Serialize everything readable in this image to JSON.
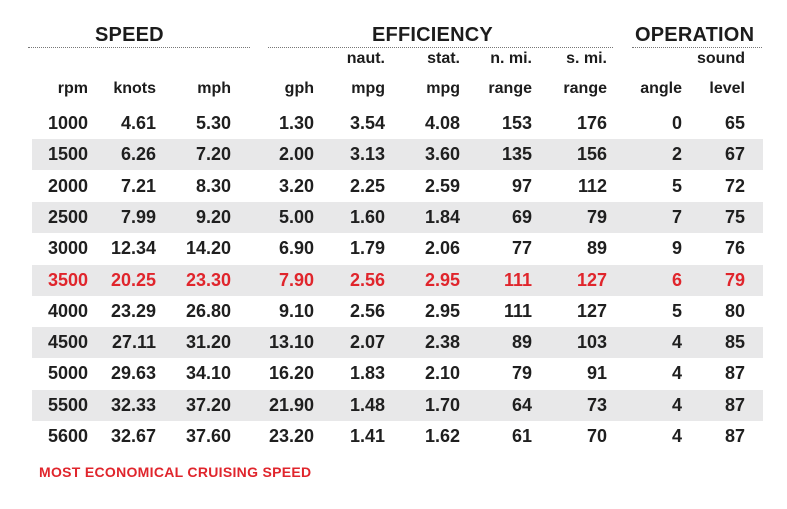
{
  "groups": {
    "speed": "SPEED",
    "efficiency": "EFFICIENCY",
    "operation": "OPERATION"
  },
  "columns": [
    {
      "top": "",
      "bottom": "rpm"
    },
    {
      "top": "",
      "bottom": "knots"
    },
    {
      "top": "",
      "bottom": "mph"
    },
    {
      "top": "",
      "bottom": "gph"
    },
    {
      "top": "naut.",
      "bottom": "mpg"
    },
    {
      "top": "stat.",
      "bottom": "mpg"
    },
    {
      "top": "n. mi.",
      "bottom": "range"
    },
    {
      "top": "s. mi.",
      "bottom": "range"
    },
    {
      "top": "",
      "bottom": "angle"
    },
    {
      "top": "sound",
      "bottom": "level"
    }
  ],
  "rows": [
    [
      "1000",
      "4.61",
      "5.30",
      "1.30",
      "3.54",
      "4.08",
      "153",
      "176",
      "0",
      "65"
    ],
    [
      "1500",
      "6.26",
      "7.20",
      "2.00",
      "3.13",
      "3.60",
      "135",
      "156",
      "2",
      "67"
    ],
    [
      "2000",
      "7.21",
      "8.30",
      "3.20",
      "2.25",
      "2.59",
      "97",
      "112",
      "5",
      "72"
    ],
    [
      "2500",
      "7.99",
      "9.20",
      "5.00",
      "1.60",
      "1.84",
      "69",
      "79",
      "7",
      "75"
    ],
    [
      "3000",
      "12.34",
      "14.20",
      "6.90",
      "1.79",
      "2.06",
      "77",
      "89",
      "9",
      "76"
    ],
    [
      "3500",
      "20.25",
      "23.30",
      "7.90",
      "2.56",
      "2.95",
      "111",
      "127",
      "6",
      "79"
    ],
    [
      "4000",
      "23.29",
      "26.80",
      "9.10",
      "2.56",
      "2.95",
      "111",
      "127",
      "5",
      "80"
    ],
    [
      "4500",
      "27.11",
      "31.20",
      "13.10",
      "2.07",
      "2.38",
      "89",
      "103",
      "4",
      "85"
    ],
    [
      "5000",
      "29.63",
      "34.10",
      "16.20",
      "1.83",
      "2.10",
      "79",
      "91",
      "4",
      "87"
    ],
    [
      "5500",
      "32.33",
      "37.20",
      "21.90",
      "1.48",
      "1.70",
      "64",
      "73",
      "4",
      "87"
    ],
    [
      "5600",
      "32.67",
      "37.60",
      "23.20",
      "1.41",
      "1.62",
      "61",
      "70",
      "4",
      "87"
    ]
  ],
  "highlight_row": 5,
  "highlight_color": "#e0252c",
  "band_color": "#e8e8e9",
  "footnote": "MOST ECONOMICAL CRUISING SPEED"
}
